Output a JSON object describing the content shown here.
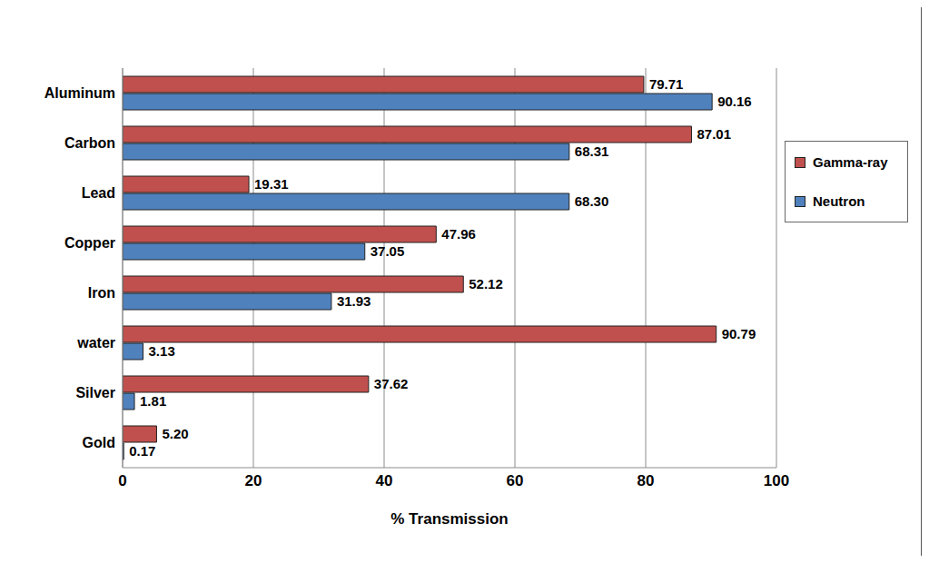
{
  "chart_data": {
    "type": "bar",
    "orientation": "horizontal",
    "x_label": "% Transmission",
    "categories": [
      "Aluminum",
      "Carbon",
      "Lead",
      "Copper",
      "Iron",
      "water",
      "Silver",
      "Gold"
    ],
    "series": [
      {
        "name": "Gamma-ray",
        "color": "#c0504d",
        "values": [
          79.71,
          87.01,
          19.31,
          47.96,
          52.12,
          90.79,
          37.62,
          5.2
        ],
        "value_labels": [
          "79.71",
          "87.01",
          "19.31",
          "47.96",
          "52.12",
          "90.79",
          "37.62",
          "5.20"
        ]
      },
      {
        "name": "Neutron",
        "color": "#4f81bd",
        "values": [
          90.16,
          68.31,
          68.3,
          37.05,
          31.93,
          3.13,
          1.81,
          0.17
        ],
        "value_labels": [
          "90.16",
          "68.31",
          "68.30",
          "37.05",
          "31.93",
          "3.13",
          "1.81",
          "0.17"
        ]
      }
    ],
    "xlim": [
      0,
      100
    ],
    "xticks": [
      0,
      20,
      40,
      60,
      80,
      100
    ],
    "grid": true,
    "legend": "right",
    "data_labels": true
  }
}
